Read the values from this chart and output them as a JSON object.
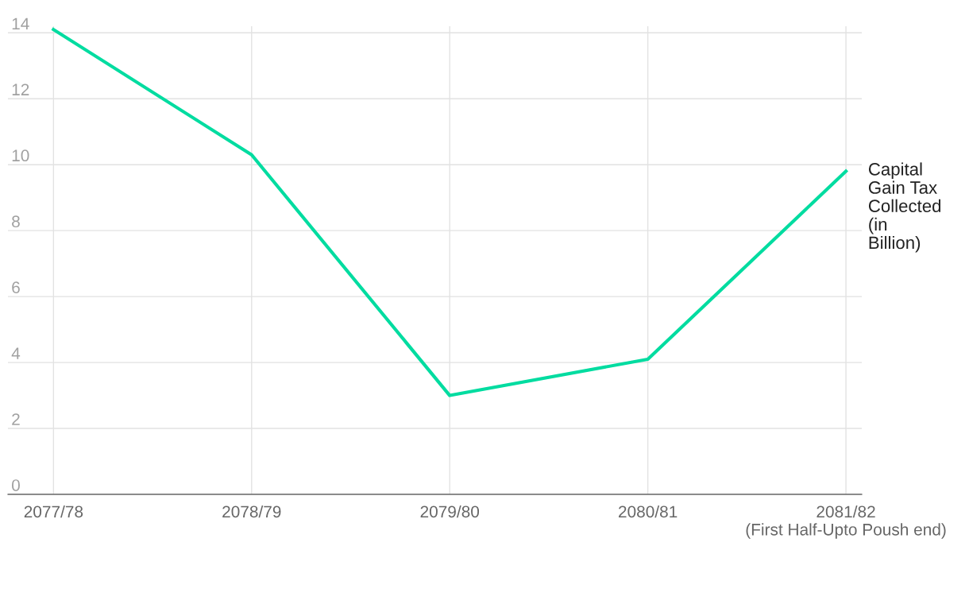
{
  "chart_data": {
    "type": "line",
    "categories": [
      "2077/78",
      "2078/79",
      "2079/80",
      "2080/81",
      "2081/82\n(First Half-Upto Poush end)"
    ],
    "series": [
      {
        "name": "Capital Gain Tax Collected (in Billion)",
        "color": "#00dca0",
        "values": [
          14.1,
          10.3,
          3.0,
          4.1,
          9.8
        ]
      }
    ],
    "ylim": [
      0,
      14.2
    ],
    "yticks": [
      0,
      2,
      4,
      6,
      8,
      10,
      12,
      14
    ],
    "grid": true,
    "legend": false,
    "marker": "none",
    "line_style": "solid"
  }
}
